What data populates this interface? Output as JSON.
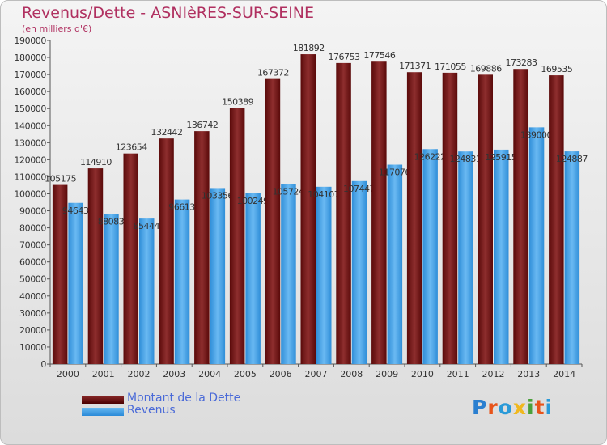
{
  "title": "Revenus/Dette - ASNIèRES-SUR-SEINE",
  "subtitle": "(en milliers d'€)",
  "colors": {
    "dette": "#7a1a1a",
    "revenus": "#4aa3e8",
    "title": "#b03060"
  },
  "legend": [
    {
      "label": "Montant de la Dette"
    },
    {
      "label": "Revenus"
    }
  ],
  "logo_text": "Proxiti",
  "chart_data": {
    "type": "bar",
    "title": "Revenus/Dette - ASNIèRES-SUR-SEINE",
    "subtitle": "(en milliers d'€)",
    "categories": [
      "2000",
      "2001",
      "2002",
      "2003",
      "2004",
      "2005",
      "2006",
      "2007",
      "2008",
      "2009",
      "2010",
      "2011",
      "2012",
      "2013",
      "2014"
    ],
    "series": [
      {
        "name": "Montant de la Dette",
        "values": [
          105175,
          114910,
          123654,
          132442,
          136742,
          150389,
          167372,
          181892,
          176753,
          177546,
          171371,
          171055,
          169886,
          173283,
          169535
        ]
      },
      {
        "name": "Revenus",
        "values": [
          94643,
          88083,
          85444,
          96613,
          103356,
          100249,
          105724,
          104107,
          107447,
          117076,
          126222,
          124831,
          125915,
          139000,
          124887
        ]
      }
    ],
    "ylim": [
      0,
      190000
    ],
    "ytick_step": 10000,
    "grid": false,
    "legend_position": "bottom-left"
  }
}
